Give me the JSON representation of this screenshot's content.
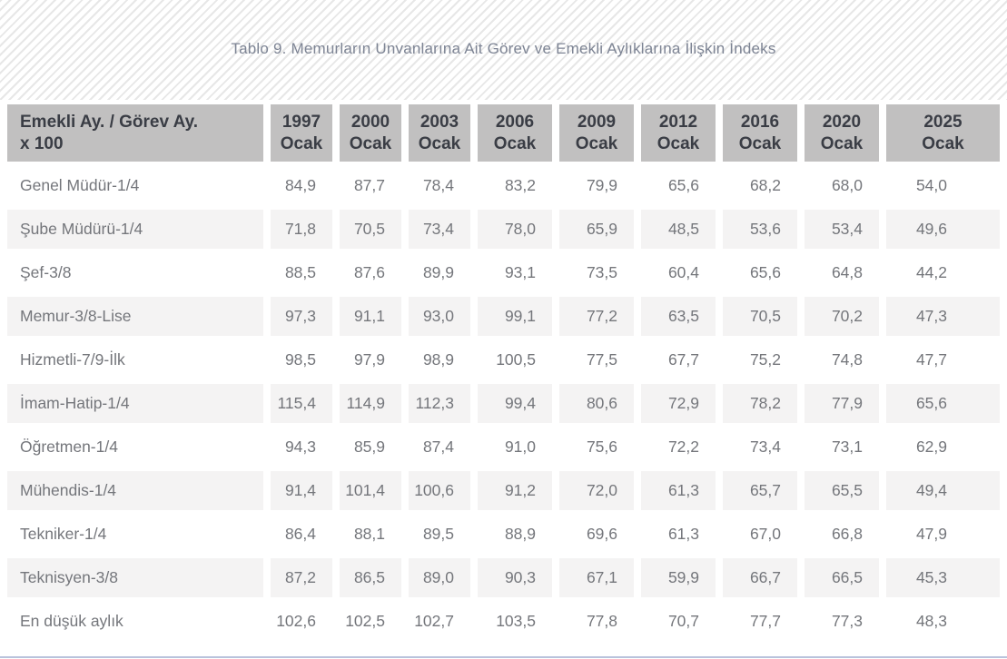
{
  "title": "Tablo 9. Memurların Unvanlarına Ait Görev ve Emekli Aylıklarına İlişkin İndeks",
  "table": {
    "corner_header": {
      "line1": "Emekli Ay. / Görev Ay.",
      "line2": "x 100"
    },
    "month_label": "Ocak",
    "year_columns": [
      "1997",
      "2000",
      "2003",
      "2006",
      "2009",
      "2012",
      "2016",
      "2020",
      "2025"
    ],
    "rows": [
      {
        "label": "Genel Müdür-1/4",
        "values": [
          "84,9",
          "87,7",
          "78,4",
          "83,2",
          "79,9",
          "65,6",
          "68,2",
          "68,0",
          "54,0"
        ]
      },
      {
        "label": "Şube Müdürü-1/4",
        "values": [
          "71,8",
          "70,5",
          "73,4",
          "78,0",
          "65,9",
          "48,5",
          "53,6",
          "53,4",
          "49,6"
        ]
      },
      {
        "label": "Şef-3/8",
        "values": [
          "88,5",
          "87,6",
          "89,9",
          "93,1",
          "73,5",
          "60,4",
          "65,6",
          "64,8",
          "44,2"
        ]
      },
      {
        "label": "Memur-3/8-Lise",
        "values": [
          "97,3",
          "91,1",
          "93,0",
          "99,1",
          "77,2",
          "63,5",
          "70,5",
          "70,2",
          "47,3"
        ]
      },
      {
        "label": "Hizmetli-7/9-İlk",
        "values": [
          "98,5",
          "97,9",
          "98,9",
          "100,5",
          "77,5",
          "67,7",
          "75,2",
          "74,8",
          "47,7"
        ]
      },
      {
        "label": "İmam-Hatip-1/4",
        "values": [
          "115,4",
          "114,9",
          "112,3",
          "99,4",
          "80,6",
          "72,9",
          "78,2",
          "77,9",
          "65,6"
        ]
      },
      {
        "label": "Öğretmen-1/4",
        "values": [
          "94,3",
          "85,9",
          "87,4",
          "91,0",
          "75,6",
          "72,2",
          "73,4",
          "73,1",
          "62,9"
        ]
      },
      {
        "label": "Mühendis-1/4",
        "values": [
          "91,4",
          "101,4",
          "100,6",
          "91,2",
          "72,0",
          "61,3",
          "65,7",
          "65,5",
          "49,4"
        ]
      },
      {
        "label": "Tekniker-1/4",
        "values": [
          "86,4",
          "88,1",
          "89,5",
          "88,9",
          "69,6",
          "61,3",
          "67,0",
          "66,8",
          "47,9"
        ]
      },
      {
        "label": "Teknisyen-3/8",
        "values": [
          "87,2",
          "86,5",
          "89,0",
          "90,3",
          "67,1",
          "59,9",
          "66,7",
          "66,5",
          "45,3"
        ]
      },
      {
        "label": "En düşük aylık",
        "values": [
          "102,6",
          "102,5",
          "102,7",
          "103,5",
          "77,8",
          "70,7",
          "77,7",
          "77,3",
          "48,3"
        ]
      }
    ]
  },
  "colors": {
    "stripe_line": "#e7e7e7",
    "title_text": "#7d8494",
    "header_bg": "#c1c0c0",
    "header_text": "#3a3d45",
    "body_text": "#74767b",
    "zebra_row_bg": "#f4f3f3",
    "bottom_rule": "#b9c3dc"
  }
}
